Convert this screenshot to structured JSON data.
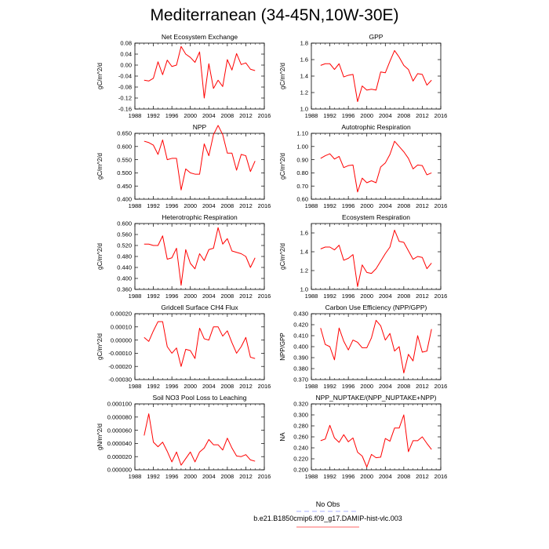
{
  "page": {
    "title": "Mediterranean (34-45N,10W-30E)"
  },
  "legend": {
    "items": [
      {
        "name": "No Obs",
        "color": "#aab0ff",
        "dash": true
      },
      {
        "name": "b.e21.B1850cmip6.f09_g17.DAMIP-hist-vlc.003",
        "color": "#ff3333",
        "dash": false
      }
    ]
  },
  "chart_data": [
    {
      "type": "line",
      "title": "Net Ecosystem Exchange",
      "ylabel": "gC/m^2/d",
      "xlim": [
        1988,
        2016
      ],
      "ylim": [
        -0.16,
        0.08
      ],
      "xticks": [
        1988,
        1992,
        1996,
        2000,
        2004,
        2008,
        2012,
        2016
      ],
      "yticks": [
        -0.16,
        -0.12,
        -0.08,
        -0.04,
        0.0,
        0.04,
        0.08
      ],
      "ytick_labels": [
        "-0.16",
        "-0.12",
        "-0.08",
        "-0.04",
        "0.00",
        "0.04",
        "0.08"
      ],
      "series": [
        {
          "color": "#ff0000",
          "x": [
            1990,
            1991,
            1992,
            1993,
            1994,
            1995,
            1996,
            1997,
            1998,
            1999,
            2000,
            2001,
            2002,
            2003,
            2004,
            2005,
            2006,
            2007,
            2008,
            2009,
            2010,
            2011,
            2012,
            2013,
            2014
          ],
          "y": [
            -0.055,
            -0.058,
            -0.048,
            0.012,
            -0.035,
            0.018,
            -0.005,
            0.0,
            0.068,
            0.04,
            0.028,
            0.01,
            0.048,
            -0.12,
            0.005,
            -0.085,
            -0.055,
            -0.078,
            0.02,
            -0.018,
            0.042,
            0.002,
            0.008,
            -0.015,
            -0.02
          ]
        }
      ]
    },
    {
      "type": "line",
      "title": "GPP",
      "ylabel": "gC/m^2/d",
      "xlim": [
        1988,
        2016
      ],
      "ylim": [
        1.0,
        1.8
      ],
      "xticks": [
        1988,
        1992,
        1996,
        2000,
        2004,
        2008,
        2012,
        2016
      ],
      "yticks": [
        1.0,
        1.2,
        1.4,
        1.6,
        1.8
      ],
      "ytick_labels": [
        "1.0",
        "1.2",
        "1.4",
        "1.6",
        "1.8"
      ],
      "series": [
        {
          "color": "#ff0000",
          "x": [
            1990,
            1991,
            1992,
            1993,
            1994,
            1995,
            1996,
            1997,
            1998,
            1999,
            2000,
            2001,
            2002,
            2003,
            2004,
            2005,
            2006,
            2007,
            2008,
            2009,
            2010,
            2011,
            2012,
            2013,
            2014
          ],
          "y": [
            1.53,
            1.55,
            1.55,
            1.48,
            1.55,
            1.39,
            1.41,
            1.42,
            1.09,
            1.28,
            1.23,
            1.24,
            1.23,
            1.45,
            1.44,
            1.58,
            1.71,
            1.63,
            1.53,
            1.48,
            1.34,
            1.43,
            1.42,
            1.29,
            1.35
          ]
        }
      ]
    },
    {
      "type": "line",
      "title": "NPP",
      "ylabel": "gC/m^2/d",
      "xlim": [
        1988,
        2016
      ],
      "ylim": [
        0.4,
        0.65
      ],
      "xticks": [
        1988,
        1992,
        1996,
        2000,
        2004,
        2008,
        2012,
        2016
      ],
      "yticks": [
        0.4,
        0.45,
        0.5,
        0.55,
        0.6,
        0.65
      ],
      "ytick_labels": [
        "0.400",
        "0.450",
        "0.500",
        "0.550",
        "0.600",
        "0.650"
      ],
      "series": [
        {
          "color": "#ff0000",
          "x": [
            1990,
            1991,
            1992,
            1993,
            1994,
            1995,
            1996,
            1997,
            1998,
            1999,
            2000,
            2001,
            2002,
            2003,
            2004,
            2005,
            2006,
            2007,
            2008,
            2009,
            2010,
            2011,
            2012,
            2013,
            2014
          ],
          "y": [
            0.62,
            0.615,
            0.605,
            0.57,
            0.625,
            0.55,
            0.555,
            0.555,
            0.435,
            0.515,
            0.5,
            0.495,
            0.495,
            0.61,
            0.565,
            0.645,
            0.68,
            0.645,
            0.575,
            0.575,
            0.51,
            0.57,
            0.565,
            0.505,
            0.545
          ]
        }
      ]
    },
    {
      "type": "line",
      "title": "Autotrophic Respiration",
      "ylabel": "gC/m^2/d",
      "xlim": [
        1988,
        2016
      ],
      "ylim": [
        0.6,
        1.1
      ],
      "xticks": [
        1988,
        1992,
        1996,
        2000,
        2004,
        2008,
        2012,
        2016
      ],
      "yticks": [
        0.6,
        0.7,
        0.8,
        0.9,
        1.0,
        1.1
      ],
      "ytick_labels": [
        "0.60",
        "0.70",
        "0.80",
        "0.90",
        "1.00",
        "1.10"
      ],
      "series": [
        {
          "color": "#ff0000",
          "x": [
            1990,
            1991,
            1992,
            1993,
            1994,
            1995,
            1996,
            1997,
            1998,
            1999,
            2000,
            2001,
            2002,
            2003,
            2004,
            2005,
            2006,
            2007,
            2008,
            2009,
            2010,
            2011,
            2012,
            2013,
            2014
          ],
          "y": [
            0.91,
            0.93,
            0.945,
            0.905,
            0.925,
            0.84,
            0.855,
            0.86,
            0.655,
            0.76,
            0.725,
            0.74,
            0.725,
            0.845,
            0.875,
            0.94,
            1.04,
            1.0,
            0.96,
            0.91,
            0.83,
            0.86,
            0.855,
            0.785,
            0.8
          ]
        }
      ]
    },
    {
      "type": "line",
      "title": "Heterotrophic Respiration",
      "ylabel": "gC/m^2/d",
      "xlim": [
        1988,
        2016
      ],
      "ylim": [
        0.36,
        0.6
      ],
      "xticks": [
        1988,
        1992,
        1996,
        2000,
        2004,
        2008,
        2012,
        2016
      ],
      "yticks": [
        0.36,
        0.4,
        0.44,
        0.48,
        0.52,
        0.56,
        0.6
      ],
      "ytick_labels": [
        "0.360",
        "0.400",
        "0.440",
        "0.480",
        "0.520",
        "0.560",
        "0.600"
      ],
      "series": [
        {
          "color": "#ff0000",
          "x": [
            1990,
            1991,
            1992,
            1993,
            1994,
            1995,
            1996,
            1997,
            1998,
            1999,
            2000,
            2001,
            2002,
            2003,
            2004,
            2005,
            2006,
            2007,
            2008,
            2009,
            2010,
            2011,
            2012,
            2013,
            2014
          ],
          "y": [
            0.525,
            0.525,
            0.52,
            0.52,
            0.555,
            0.47,
            0.475,
            0.51,
            0.375,
            0.505,
            0.455,
            0.435,
            0.49,
            0.465,
            0.505,
            0.51,
            0.585,
            0.525,
            0.545,
            0.5,
            0.495,
            0.49,
            0.48,
            0.44,
            0.475
          ]
        }
      ]
    },
    {
      "type": "line",
      "title": "Ecosystem Respiration",
      "ylabel": "gC/m^2/d",
      "xlim": [
        1988,
        2016
      ],
      "ylim": [
        1.0,
        1.7
      ],
      "xticks": [
        1988,
        1992,
        1996,
        2000,
        2004,
        2008,
        2012,
        2016
      ],
      "yticks": [
        1.0,
        1.2,
        1.4,
        1.6
      ],
      "ytick_labels": [
        "1.0",
        "1.2",
        "1.4",
        "1.6"
      ],
      "series": [
        {
          "color": "#ff0000",
          "x": [
            1990,
            1991,
            1992,
            1993,
            1994,
            1995,
            1996,
            1997,
            1998,
            1999,
            2000,
            2001,
            2002,
            2003,
            2004,
            2005,
            2006,
            2007,
            2008,
            2009,
            2010,
            2011,
            2012,
            2013,
            2014
          ],
          "y": [
            1.43,
            1.45,
            1.45,
            1.42,
            1.47,
            1.31,
            1.33,
            1.37,
            1.03,
            1.26,
            1.18,
            1.17,
            1.22,
            1.3,
            1.38,
            1.45,
            1.63,
            1.51,
            1.5,
            1.41,
            1.32,
            1.35,
            1.34,
            1.22,
            1.28
          ]
        }
      ]
    },
    {
      "type": "line",
      "title": "Gridcell Surface CH4 Flux",
      "ylabel": "gC/m^2/d",
      "xlim": [
        1988,
        2016
      ],
      "ylim": [
        -0.0003,
        0.0002
      ],
      "xticks": [
        1988,
        1992,
        1996,
        2000,
        2004,
        2008,
        2012,
        2016
      ],
      "yticks": [
        -0.0003,
        -0.0002,
        -0.0001,
        0.0,
        0.0001,
        0.0002
      ],
      "ytick_labels": [
        "-0.00030",
        "-0.00020",
        "-0.00010",
        "0.00000",
        "0.00010",
        "0.00020"
      ],
      "series": [
        {
          "color": "#ff0000",
          "x": [
            1990,
            1991,
            1992,
            1993,
            1994,
            1995,
            1996,
            1997,
            1998,
            1999,
            2000,
            2001,
            2002,
            2003,
            2004,
            2005,
            2006,
            2007,
            2008,
            2009,
            2010,
            2011,
            2012,
            2013,
            2014
          ],
          "y": [
            2e-05,
            -1e-05,
            7e-05,
            0.00014,
            0.00014,
            -5e-05,
            -0.0001,
            -6e-05,
            -0.0002,
            -7e-05,
            -8e-05,
            -0.00014,
            9e-05,
            1e-05,
            0.0,
            0.0001,
            0.0001,
            3e-05,
            7e-05,
            -2e-05,
            -0.0001,
            -5e-05,
            2e-05,
            -0.00013,
            -0.00014
          ]
        }
      ]
    },
    {
      "type": "line",
      "title": "Carbon Use Efficiency (NPP/GPP)",
      "ylabel": "NPP/GPP",
      "xlim": [
        1988,
        2016
      ],
      "ylim": [
        0.37,
        0.43
      ],
      "xticks": [
        1988,
        1992,
        1996,
        2000,
        2004,
        2008,
        2012,
        2016
      ],
      "yticks": [
        0.37,
        0.38,
        0.39,
        0.4,
        0.41,
        0.42,
        0.43
      ],
      "ytick_labels": [
        "0.370",
        "0.380",
        "0.390",
        "0.400",
        "0.410",
        "0.420",
        "0.430"
      ],
      "series": [
        {
          "color": "#ff0000",
          "x": [
            1990,
            1991,
            1992,
            1993,
            1994,
            1995,
            1996,
            1997,
            1998,
            1999,
            2000,
            2001,
            2002,
            2003,
            2004,
            2005,
            2006,
            2007,
            2008,
            2009,
            2010,
            2011,
            2012,
            2013,
            2014
          ],
          "y": [
            0.417,
            0.402,
            0.4,
            0.388,
            0.417,
            0.405,
            0.397,
            0.406,
            0.404,
            0.399,
            0.399,
            0.408,
            0.424,
            0.419,
            0.406,
            0.412,
            0.396,
            0.4,
            0.376,
            0.393,
            0.387,
            0.41,
            0.395,
            0.396,
            0.416
          ]
        }
      ]
    },
    {
      "type": "line",
      "title": "Soil NO3 Pool Loss to Leaching",
      "ylabel": "gN/m^2/d",
      "xlim": [
        1988,
        2016
      ],
      "ylim": [
        0.0,
        0.0001
      ],
      "xticks": [
        1988,
        1992,
        1996,
        2000,
        2004,
        2008,
        2012,
        2016
      ],
      "yticks": [
        0.0,
        2e-05,
        4e-05,
        6e-05,
        8e-05,
        0.0001
      ],
      "ytick_labels": [
        "0.000000",
        "0.000020",
        "0.000040",
        "0.000060",
        "0.000080",
        "0.000100"
      ],
      "series": [
        {
          "color": "#ff0000",
          "x": [
            1990,
            1991,
            1992,
            1993,
            1994,
            1995,
            1996,
            1997,
            1998,
            1999,
            2000,
            2001,
            2002,
            2003,
            2004,
            2005,
            2006,
            2007,
            2008,
            2009,
            2010,
            2011,
            2012,
            2013,
            2014
          ],
          "y": [
            5.2e-05,
            8.5e-05,
            4.2e-05,
            3.5e-05,
            4.2e-05,
            2.8e-05,
            1.2e-05,
            2.7e-05,
            7e-06,
            1.7e-05,
            2.7e-05,
            1.2e-05,
            2.7e-05,
            3.3e-05,
            4.6e-05,
            3.8e-05,
            3.8e-05,
            3e-05,
            4.8e-05,
            3.3e-05,
            2.1e-05,
            2e-05,
            2.3e-05,
            1.5e-05,
            1.3e-05
          ]
        }
      ]
    },
    {
      "type": "line",
      "title": "NPP_NUPTAKE/(NPP_NUPTAKE+NPP)",
      "ylabel": "NA",
      "xlim": [
        1988,
        2016
      ],
      "ylim": [
        0.2,
        0.32
      ],
      "xticks": [
        1988,
        1992,
        1996,
        2000,
        2004,
        2008,
        2012,
        2016
      ],
      "yticks": [
        0.2,
        0.22,
        0.24,
        0.26,
        0.28,
        0.3,
        0.32
      ],
      "ytick_labels": [
        "0.200",
        "0.220",
        "0.240",
        "0.260",
        "0.280",
        "0.300",
        "0.320"
      ],
      "series": [
        {
          "color": "#ff0000",
          "x": [
            1990,
            1991,
            1992,
            1993,
            1994,
            1995,
            1996,
            1997,
            1998,
            1999,
            2000,
            2001,
            2002,
            2003,
            2004,
            2005,
            2006,
            2007,
            2008,
            2009,
            2010,
            2011,
            2012,
            2013,
            2014
          ],
          "y": [
            0.253,
            0.256,
            0.281,
            0.258,
            0.25,
            0.264,
            0.251,
            0.258,
            0.232,
            0.225,
            0.205,
            0.228,
            0.222,
            0.223,
            0.257,
            0.252,
            0.276,
            0.276,
            0.3,
            0.233,
            0.253,
            0.253,
            0.26,
            0.248,
            0.237
          ]
        }
      ]
    }
  ]
}
